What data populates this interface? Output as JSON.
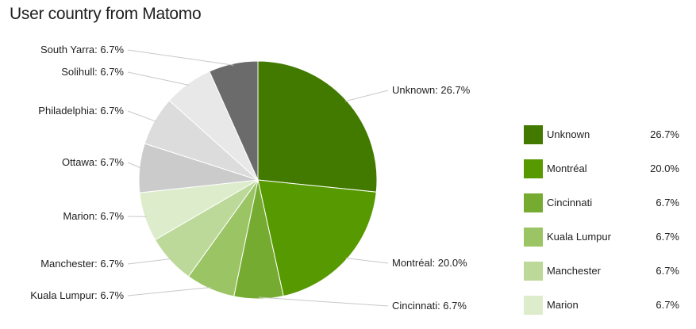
{
  "title": "User country from Matomo",
  "chart_data": {
    "type": "pie",
    "title": "User country from Matomo",
    "slices": [
      {
        "name": "Unknown",
        "value": 26.7,
        "label": "26.7%",
        "color": "#427a00"
      },
      {
        "name": "Montréal",
        "value": 20.0,
        "label": "20.0%",
        "color": "#569900"
      },
      {
        "name": "Cincinnati",
        "value": 6.7,
        "label": "6.7%",
        "color": "#76ab32"
      },
      {
        "name": "Kuala Lumpur",
        "value": 6.7,
        "label": "6.7%",
        "color": "#9bc464"
      },
      {
        "name": "Manchester",
        "value": 6.7,
        "label": "6.7%",
        "color": "#bcd99a"
      },
      {
        "name": "Marion",
        "value": 6.7,
        "label": "6.7%",
        "color": "#ddeccb"
      },
      {
        "name": "Ottawa",
        "value": 6.7,
        "label": "6.7%",
        "color": "#cbcbcb"
      },
      {
        "name": "Philadelphia",
        "value": 6.7,
        "label": "6.7%",
        "color": "#dcdcdc"
      },
      {
        "name": "Solihull",
        "value": 6.7,
        "label": "6.7%",
        "color": "#e8e8e8"
      },
      {
        "name": "South Yarra",
        "value": 6.7,
        "label": "6.7%",
        "color": "#6b6b6b"
      }
    ],
    "legend_position": "right",
    "legend_visible_count": 6
  }
}
